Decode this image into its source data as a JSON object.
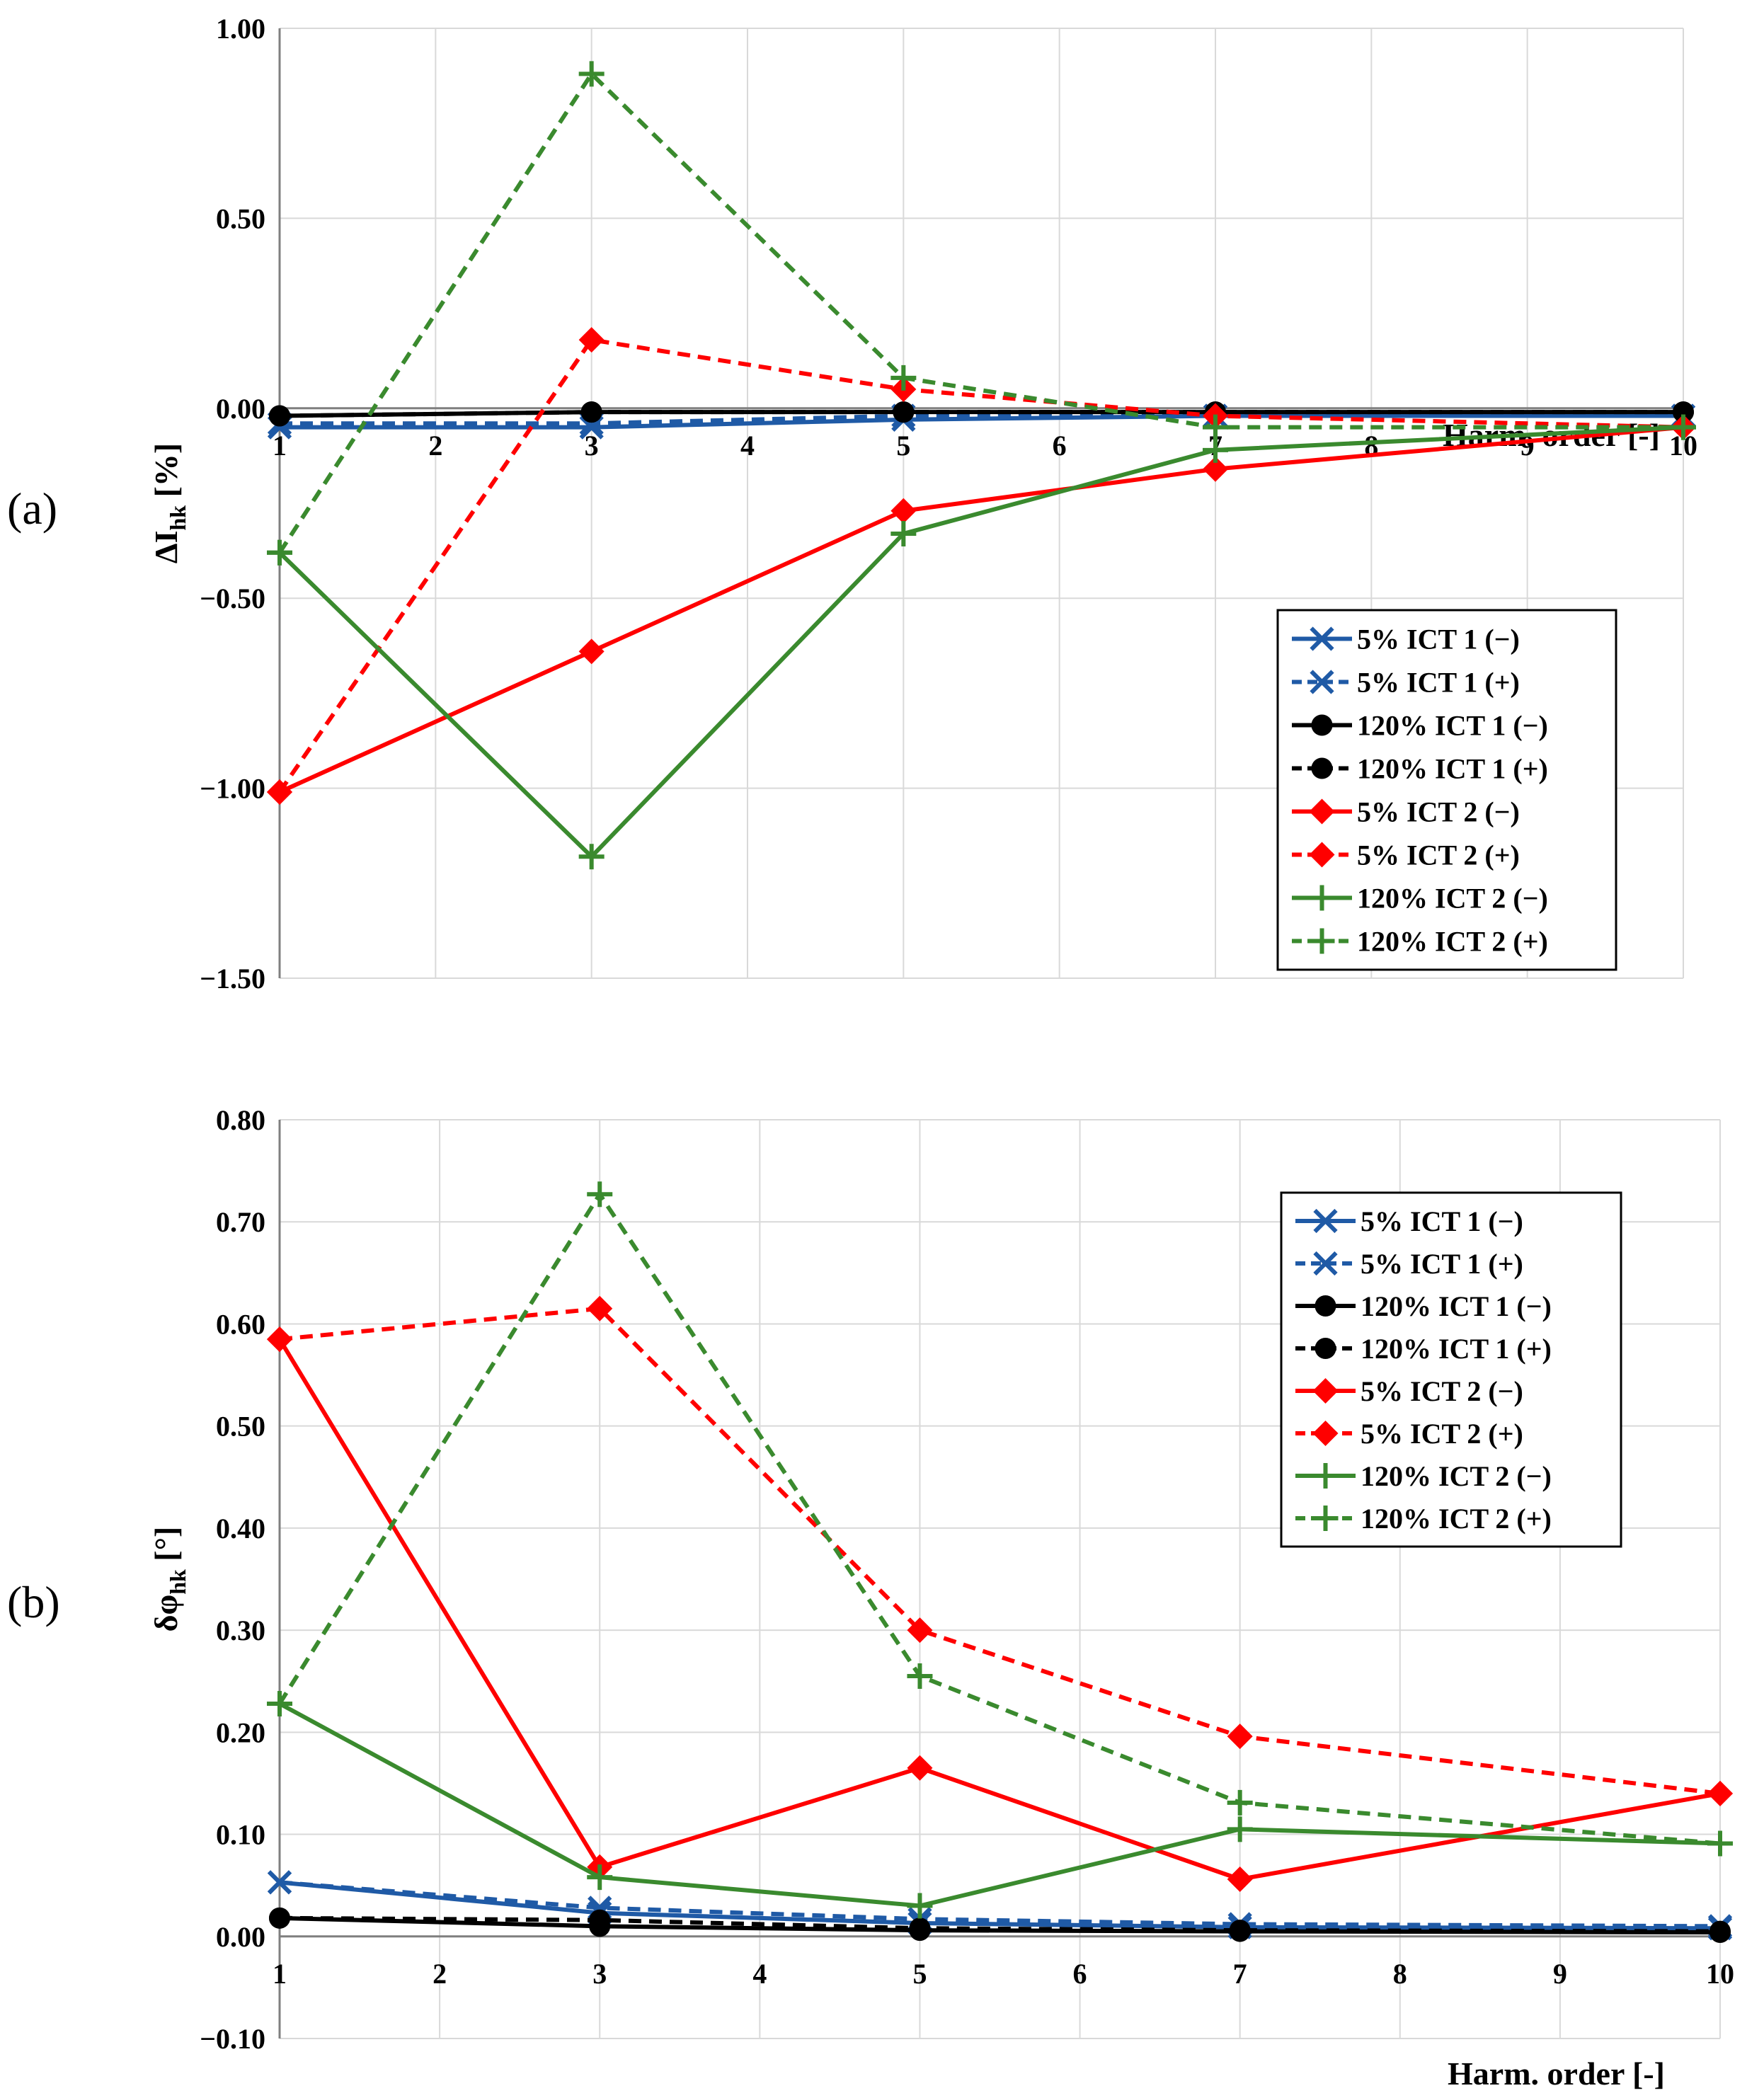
{
  "chart_data": [
    {
      "type": "line",
      "panel_label": "(a)",
      "ylabel": "ΔI",
      "ylabel_subscript": "hk",
      "ylabel_unit": " [%]",
      "xlabel": "Harm. order [-]",
      "xlim": [
        1,
        10
      ],
      "ylim": [
        -1.5,
        1.0
      ],
      "x_ticks": [
        1,
        2,
        3,
        4,
        5,
        6,
        7,
        8,
        9,
        10
      ],
      "y_ticks": [
        1.0,
        0.5,
        0.0,
        -0.5,
        -1.0,
        -1.5
      ],
      "y_tick_labels": [
        "1.00",
        "0.50",
        "0.00",
        "−0.50",
        "−1.00",
        "−1.50"
      ],
      "grid": true,
      "legend_position": "lower-right",
      "x": [
        1,
        3,
        5,
        7,
        10
      ],
      "series": [
        {
          "name": "5% ICT 1 (−)",
          "color": "#1f5aa6",
          "dash": "solid",
          "marker": "x",
          "values": [
            -0.05,
            -0.05,
            -0.03,
            -0.02,
            -0.02
          ]
        },
        {
          "name": "5% ICT 1 (+)",
          "color": "#1f5aa6",
          "dash": "dashed",
          "marker": "x",
          "values": [
            -0.04,
            -0.04,
            -0.02,
            -0.02,
            -0.02
          ]
        },
        {
          "name": "120% ICT 1 (−)",
          "color": "#000000",
          "dash": "solid",
          "marker": "circle",
          "values": [
            -0.02,
            -0.01,
            -0.01,
            -0.01,
            -0.01
          ]
        },
        {
          "name": "120% ICT 1 (+)",
          "color": "#000000",
          "dash": "dashed",
          "marker": "circle",
          "values": [
            -0.02,
            -0.01,
            -0.01,
            -0.01,
            -0.01
          ]
        },
        {
          "name": "5% ICT 2 (−)",
          "color": "#ff0000",
          "dash": "solid",
          "marker": "diamond",
          "values": [
            -1.01,
            -0.64,
            -0.27,
            -0.16,
            -0.05
          ]
        },
        {
          "name": "5% ICT 2 (+)",
          "color": "#ff0000",
          "dash": "dashed",
          "marker": "diamond",
          "values": [
            -1.01,
            0.18,
            0.05,
            -0.02,
            -0.05
          ]
        },
        {
          "name": "120% ICT 2 (−)",
          "color": "#3a8a2e",
          "dash": "solid",
          "marker": "plus",
          "values": [
            -0.38,
            -1.18,
            -0.33,
            -0.11,
            -0.05
          ]
        },
        {
          "name": "120% ICT 2 (+)",
          "color": "#3a8a2e",
          "dash": "dashed",
          "marker": "plus",
          "values": [
            -0.38,
            0.88,
            0.08,
            -0.05,
            -0.05
          ]
        }
      ]
    },
    {
      "type": "line",
      "panel_label": "(b)",
      "ylabel": "δφ",
      "ylabel_subscript": "hk",
      "ylabel_unit": " [°]",
      "xlabel": "Harm. order [-]",
      "xlim": [
        1,
        10
      ],
      "ylim": [
        -0.1,
        0.8
      ],
      "x_ticks": [
        1,
        2,
        3,
        4,
        5,
        6,
        7,
        8,
        9,
        10
      ],
      "y_ticks": [
        0.8,
        0.7,
        0.6,
        0.5,
        0.4,
        0.3,
        0.2,
        0.1,
        0.0,
        -0.1
      ],
      "y_tick_labels": [
        "0.80",
        "0.70",
        "0.60",
        "0.50",
        "0.40",
        "0.30",
        "0.20",
        "0.10",
        "0.00",
        "−0.10"
      ],
      "grid": true,
      "legend_position": "top-right",
      "x": [
        1,
        3,
        5,
        7,
        10
      ],
      "series": [
        {
          "name": "5% ICT 1 (−)",
          "color": "#1f5aa6",
          "dash": "solid",
          "marker": "x",
          "values": [
            0.053,
            0.023,
            0.013,
            0.009,
            0.008
          ]
        },
        {
          "name": "5% ICT 1 (+)",
          "color": "#1f5aa6",
          "dash": "dashed",
          "marker": "x",
          "values": [
            0.053,
            0.028,
            0.017,
            0.012,
            0.01
          ]
        },
        {
          "name": "120% ICT 1 (−)",
          "color": "#000000",
          "dash": "solid",
          "marker": "circle",
          "values": [
            0.018,
            0.01,
            0.006,
            0.005,
            0.004
          ]
        },
        {
          "name": "120% ICT 1 (+)",
          "color": "#000000",
          "dash": "dashed",
          "marker": "circle",
          "values": [
            0.018,
            0.016,
            0.008,
            0.006,
            0.005
          ]
        },
        {
          "name": "5% ICT 2 (−)",
          "color": "#ff0000",
          "dash": "solid",
          "marker": "diamond",
          "values": [
            0.585,
            0.068,
            0.165,
            0.056,
            0.14
          ]
        },
        {
          "name": "5% ICT 2 (+)",
          "color": "#ff0000",
          "dash": "dashed",
          "marker": "diamond",
          "values": [
            0.585,
            0.615,
            0.3,
            0.196,
            0.14
          ]
        },
        {
          "name": "120% ICT 2 (−)",
          "color": "#3a8a2e",
          "dash": "solid",
          "marker": "plus",
          "values": [
            0.228,
            0.058,
            0.03,
            0.105,
            0.091
          ]
        },
        {
          "name": "120% ICT 2 (+)",
          "color": "#3a8a2e",
          "dash": "dashed",
          "marker": "plus",
          "values": [
            0.228,
            0.727,
            0.255,
            0.131,
            0.091
          ]
        }
      ]
    }
  ]
}
